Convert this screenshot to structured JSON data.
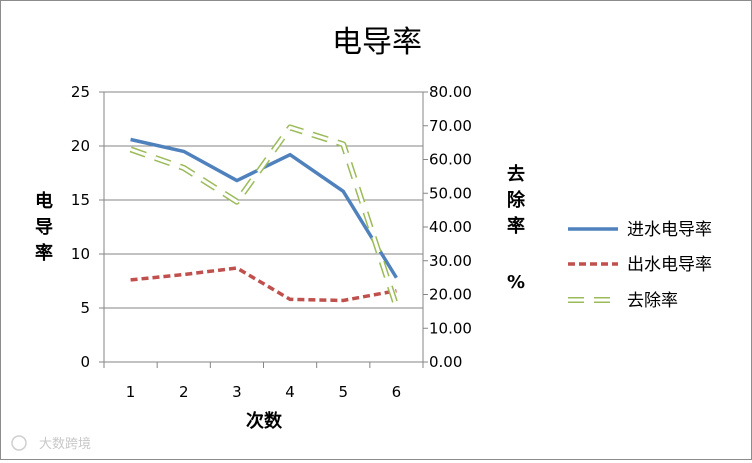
{
  "chart_data": {
    "type": "line",
    "title": "电导率",
    "xlabel": "次数",
    "ylabel_left": "电导率",
    "ylabel_right": "去除率",
    "ylabel_right_unit": "%",
    "categories": [
      "1",
      "2",
      "3",
      "4",
      "5",
      "6"
    ],
    "ylim_left": [
      0,
      25
    ],
    "yticks_left": [
      "0",
      "5",
      "10",
      "15",
      "20",
      "25"
    ],
    "ylim_right": [
      0,
      80
    ],
    "yticks_right": [
      "0.00",
      "10.00",
      "20.00",
      "30.00",
      "40.00",
      "50.00",
      "60.00",
      "70.00",
      "80.00"
    ],
    "grid": true,
    "legend_position": "right",
    "series": [
      {
        "name": "进水电导率",
        "axis": "left",
        "color": "#4f81bd",
        "style": "solid",
        "values": [
          20.6,
          19.5,
          16.8,
          19.2,
          15.8,
          7.8
        ]
      },
      {
        "name": "出水电导率",
        "axis": "left",
        "color": "#c0504d",
        "style": "dash",
        "values": [
          7.6,
          8.1,
          8.7,
          5.8,
          5.7,
          6.6
        ]
      },
      {
        "name": "去除率",
        "axis": "right",
        "color": "#9bbb59",
        "style": "long-dash-outline",
        "values": [
          63.0,
          57.5,
          47.5,
          69.5,
          64.5,
          16.5
        ]
      }
    ]
  },
  "watermark": "大数跨境"
}
